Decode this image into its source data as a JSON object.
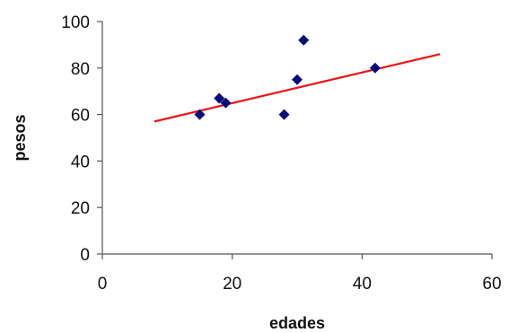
{
  "chart_data": {
    "type": "scatter",
    "xlabel": "edades",
    "ylabel": "pesos",
    "xlim": [
      0,
      60
    ],
    "ylim": [
      0,
      100
    ],
    "xticks": [
      0,
      20,
      40,
      60
    ],
    "yticks": [
      0,
      20,
      40,
      60,
      80,
      100
    ],
    "xtick_labels": [
      "0",
      "20",
      "40",
      "60"
    ],
    "ytick_labels": [
      "0",
      "20",
      "40",
      "60",
      "80",
      "100"
    ],
    "grid": false,
    "legend": "none",
    "series": [
      {
        "marker": "diamond",
        "color": "#0b0b7a",
        "points": [
          {
            "x": 15,
            "y": 60
          },
          {
            "x": 18,
            "y": 67
          },
          {
            "x": 19,
            "y": 65
          },
          {
            "x": 28,
            "y": 60
          },
          {
            "x": 30,
            "y": 75
          },
          {
            "x": 31,
            "y": 92
          },
          {
            "x": 42,
            "y": 80
          }
        ]
      }
    ],
    "trendline": {
      "color": "#ee1111",
      "from": {
        "x": 8,
        "y": 57
      },
      "to": {
        "x": 52,
        "y": 86
      }
    }
  }
}
